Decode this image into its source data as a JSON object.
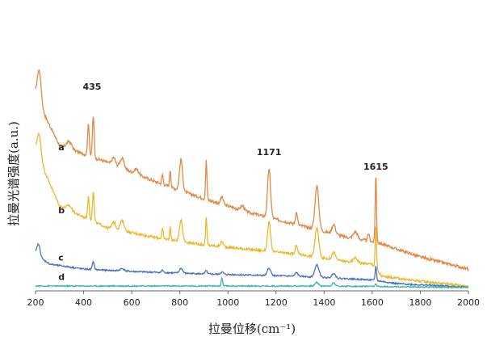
{
  "chart_data": {
    "type": "line",
    "xlabel": "拉曼位移(cm⁻¹)",
    "ylabel": "拉曼光谱强度(a.u.)",
    "xlim": [
      200,
      2000
    ],
    "ylim": [
      0,
      100
    ],
    "x_ticks": [
      "200",
      "400",
      "600",
      "800",
      "1000",
      "1200",
      "1400",
      "1600",
      "1800",
      "2000"
    ],
    "grid": false,
    "peak_labels": [
      {
        "text": "435",
        "x": 435,
        "y": 83
      },
      {
        "text": "1171",
        "x": 1171,
        "y": 56
      },
      {
        "text": "1615",
        "x": 1615,
        "y": 50
      }
    ],
    "series": [
      {
        "name": "a",
        "color": "#E08A4A",
        "label_x": 295,
        "label_y": 58,
        "noise": 1.2,
        "baseline": [
          [
            200,
            80
          ],
          [
            300,
            60
          ],
          [
            500,
            53
          ],
          [
            700,
            45
          ],
          [
            900,
            38
          ],
          [
            1100,
            32
          ],
          [
            1300,
            27
          ],
          [
            1500,
            22
          ],
          [
            1620,
            20
          ],
          [
            1800,
            14
          ],
          [
            2000,
            9
          ]
        ],
        "peaks": [
          [
            215,
            14,
            12
          ],
          [
            340,
            3,
            15
          ],
          [
            420,
            13,
            5
          ],
          [
            440,
            17,
            5
          ],
          [
            525,
            3,
            10
          ],
          [
            560,
            4,
            12
          ],
          [
            620,
            2,
            12
          ],
          [
            728,
            4,
            4
          ],
          [
            760,
            7,
            4
          ],
          [
            805,
            13,
            9
          ],
          [
            910,
            16,
            4
          ],
          [
            975,
            3,
            8
          ],
          [
            1060,
            2,
            10
          ],
          [
            1171,
            20,
            9
          ],
          [
            1285,
            5,
            6
          ],
          [
            1370,
            18,
            11
          ],
          [
            1440,
            4,
            10
          ],
          [
            1530,
            3,
            12
          ],
          [
            1585,
            3,
            5
          ],
          [
            1615,
            28,
            4
          ]
        ]
      },
      {
        "name": "b",
        "color": "#EDB82E",
        "label_x": 295,
        "label_y": 32,
        "noise": 1.0,
        "baseline": [
          [
            200,
            58
          ],
          [
            300,
            35
          ],
          [
            500,
            26
          ],
          [
            700,
            22
          ],
          [
            900,
            19
          ],
          [
            1100,
            17
          ],
          [
            1300,
            15
          ],
          [
            1500,
            12
          ],
          [
            1600,
            11
          ],
          [
            1640,
            6
          ],
          [
            1800,
            4
          ],
          [
            2000,
            2
          ]
        ],
        "peaks": [
          [
            215,
            10,
            12
          ],
          [
            340,
            2,
            15
          ],
          [
            420,
            9,
            5
          ],
          [
            440,
            12,
            5
          ],
          [
            525,
            3,
            10
          ],
          [
            560,
            4,
            12
          ],
          [
            728,
            4,
            4
          ],
          [
            760,
            5,
            4
          ],
          [
            805,
            9,
            9
          ],
          [
            910,
            11,
            4
          ],
          [
            975,
            2,
            8
          ],
          [
            1171,
            12,
            9
          ],
          [
            1285,
            4,
            6
          ],
          [
            1370,
            12,
            11
          ],
          [
            1440,
            3,
            10
          ],
          [
            1530,
            2,
            12
          ],
          [
            1615,
            18,
            4
          ]
        ]
      },
      {
        "name": "c",
        "color": "#4A72C0",
        "label_x": 295,
        "label_y": 12.5,
        "noise": 0.6,
        "baseline": [
          [
            200,
            15
          ],
          [
            260,
            11
          ],
          [
            400,
            9
          ],
          [
            600,
            8
          ],
          [
            900,
            7
          ],
          [
            1100,
            6.5
          ],
          [
            1300,
            6
          ],
          [
            1500,
            5
          ],
          [
            1600,
            4.5
          ],
          [
            1700,
            3
          ],
          [
            2000,
            1.5
          ]
        ],
        "peaks": [
          [
            212,
            5,
            10
          ],
          [
            440,
            3,
            6
          ],
          [
            560,
            1,
            12
          ],
          [
            728,
            1,
            5
          ],
          [
            805,
            2,
            9
          ],
          [
            910,
            1.5,
            5
          ],
          [
            975,
            1,
            8
          ],
          [
            1171,
            3,
            10
          ],
          [
            1285,
            1.5,
            8
          ],
          [
            1370,
            5,
            12
          ],
          [
            1440,
            2,
            10
          ],
          [
            1615,
            6,
            4
          ]
        ]
      },
      {
        "name": "d",
        "color": "#3BB8A8",
        "label_x": 295,
        "label_y": 4.5,
        "noise": 0.5,
        "baseline": [
          [
            200,
            2
          ],
          [
            600,
            2
          ],
          [
            1000,
            2
          ],
          [
            1400,
            2
          ],
          [
            1800,
            1.6
          ],
          [
            2000,
            1.4
          ]
        ],
        "peaks": [
          [
            975,
            3.5,
            4
          ],
          [
            1370,
            1.5,
            10
          ],
          [
            1440,
            1.5,
            8
          ],
          [
            1615,
            1,
            5
          ]
        ]
      }
    ]
  }
}
